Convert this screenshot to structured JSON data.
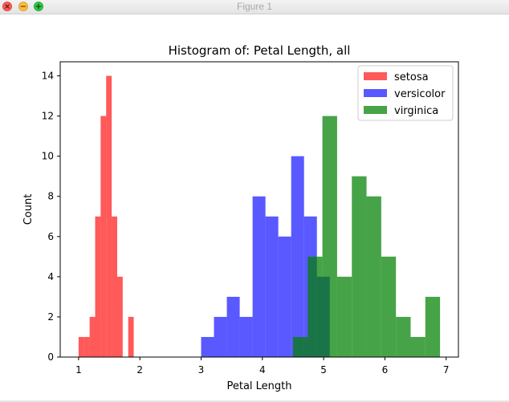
{
  "window": {
    "title": "Figure 1"
  },
  "chart_data": {
    "type": "histogram",
    "title": "Histogram of: Petal Length, all",
    "xlabel": "Petal Length",
    "ylabel": "Count",
    "xlim": [
      0.7,
      7.2
    ],
    "ylim": [
      0,
      14.7
    ],
    "xticks": [
      1,
      2,
      3,
      4,
      5,
      6,
      7
    ],
    "yticks": [
      0,
      2,
      4,
      6,
      8,
      10,
      12,
      14
    ],
    "grid": false,
    "legend_position": "top-right",
    "series": [
      {
        "name": "setosa",
        "color": "#ff0000",
        "opacity": 0.65,
        "bins": [
          {
            "x0": 1.0,
            "x1": 1.09,
            "count": 1
          },
          {
            "x0": 1.09,
            "x1": 1.18,
            "count": 1
          },
          {
            "x0": 1.18,
            "x1": 1.27,
            "count": 2
          },
          {
            "x0": 1.27,
            "x1": 1.36,
            "count": 7
          },
          {
            "x0": 1.36,
            "x1": 1.45,
            "count": 12
          },
          {
            "x0": 1.45,
            "x1": 1.54,
            "count": 14
          },
          {
            "x0": 1.54,
            "x1": 1.63,
            "count": 7
          },
          {
            "x0": 1.63,
            "x1": 1.72,
            "count": 4
          },
          {
            "x0": 1.72,
            "x1": 1.81,
            "count": 0
          },
          {
            "x0": 1.81,
            "x1": 1.9,
            "count": 2
          }
        ]
      },
      {
        "name": "versicolor",
        "color": "#0000ff",
        "opacity": 0.65,
        "bins": [
          {
            "x0": 3.0,
            "x1": 3.21,
            "count": 1
          },
          {
            "x0": 3.21,
            "x1": 3.42,
            "count": 2
          },
          {
            "x0": 3.42,
            "x1": 3.63,
            "count": 3
          },
          {
            "x0": 3.63,
            "x1": 3.84,
            "count": 2
          },
          {
            "x0": 3.84,
            "x1": 4.05,
            "count": 8
          },
          {
            "x0": 4.05,
            "x1": 4.26,
            "count": 7
          },
          {
            "x0": 4.26,
            "x1": 4.47,
            "count": 6
          },
          {
            "x0": 4.47,
            "x1": 4.68,
            "count": 10
          },
          {
            "x0": 4.68,
            "x1": 4.89,
            "count": 7
          },
          {
            "x0": 4.89,
            "x1": 5.1,
            "count": 4
          }
        ]
      },
      {
        "name": "virginica",
        "color": "#008000",
        "opacity": 0.72,
        "bins": [
          {
            "x0": 4.5,
            "x1": 4.74,
            "count": 1
          },
          {
            "x0": 4.74,
            "x1": 4.98,
            "count": 5
          },
          {
            "x0": 4.98,
            "x1": 5.22,
            "count": 12
          },
          {
            "x0": 5.22,
            "x1": 5.46,
            "count": 4
          },
          {
            "x0": 5.46,
            "x1": 5.7,
            "count": 9
          },
          {
            "x0": 5.7,
            "x1": 5.94,
            "count": 8
          },
          {
            "x0": 5.94,
            "x1": 6.18,
            "count": 5
          },
          {
            "x0": 6.18,
            "x1": 6.42,
            "count": 2
          },
          {
            "x0": 6.42,
            "x1": 6.66,
            "count": 1
          },
          {
            "x0": 6.66,
            "x1": 6.9,
            "count": 3
          }
        ]
      }
    ]
  }
}
